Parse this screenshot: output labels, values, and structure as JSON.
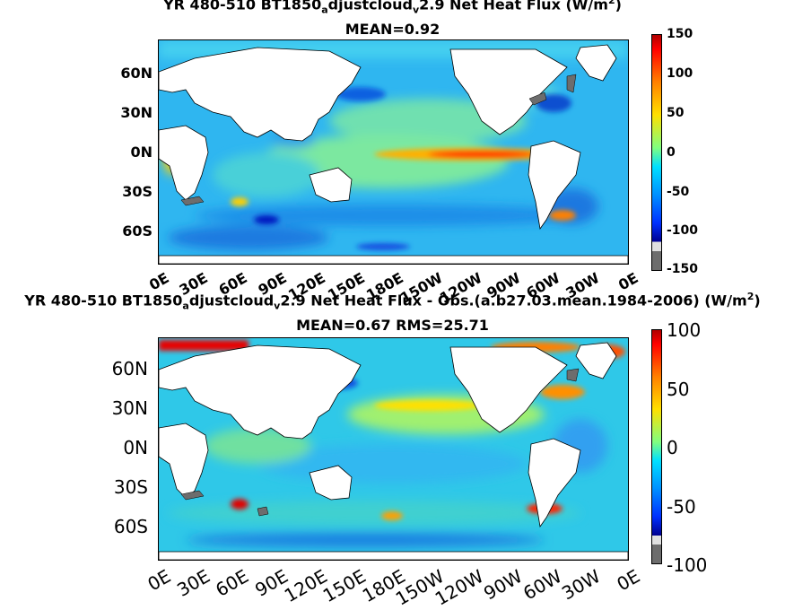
{
  "panels": [
    {
      "title_pre": "YR 480-510 BT1850",
      "title_sub1": "a",
      "title_mid": "djustcloud",
      "title_sub2": "v",
      "title_post": "2.9  Net Heat Flux (W/m",
      "title_sup": "2",
      "title_end": ")",
      "stats": "MEAN=0.92",
      "lat_ticks": [
        "60N",
        "30N",
        "0N",
        "30S",
        "60S"
      ],
      "lon_ticks": [
        "0E",
        "30E",
        "60E",
        "90E",
        "120E",
        "150E",
        "180E",
        "150W",
        "120W",
        "90W",
        "60W",
        "30W",
        "0E"
      ],
      "colorbar_labels": [
        "150",
        "100",
        "50",
        "0",
        "-50",
        "-100",
        "-150"
      ],
      "colorbar_range": [
        -150,
        150
      ]
    },
    {
      "title_pre": "YR 480-510 BT1850",
      "title_sub1": "a",
      "title_mid": "djustcloud",
      "title_sub2": "v",
      "title_post": "2.9  Net Heat Flux - Obs.(a.b27.03.mean.1984-2006) (W/m",
      "title_sup": "2",
      "title_end": ")",
      "stats": "MEAN=0.67 RMS=25.71",
      "lat_ticks": [
        "60N",
        "30N",
        "0N",
        "30S",
        "60S"
      ],
      "lon_ticks": [
        "0E",
        "30E",
        "60E",
        "90E",
        "120E",
        "150E",
        "180E",
        "150W",
        "120W",
        "90W",
        "60W",
        "30W",
        "0E"
      ],
      "colorbar_labels": [
        "100",
        "50",
        "0",
        "-50",
        "-100"
      ],
      "colorbar_range": [
        -100,
        100
      ]
    }
  ],
  "colors": {
    "ocean_base": "#2fb6f0",
    "land": "#ffffff",
    "below_range": "#6d6d6d"
  }
}
